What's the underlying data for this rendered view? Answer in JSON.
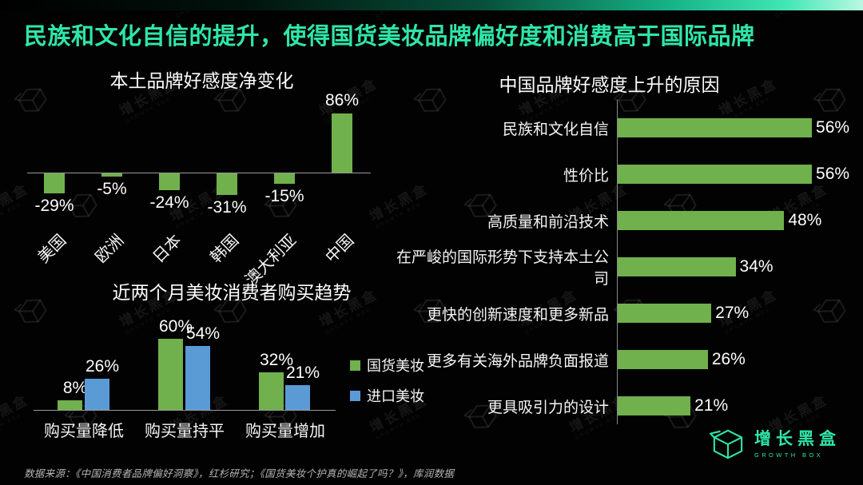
{
  "title": "民族和文化自信的提升，使得国货美妆品牌偏好度和消费高于国际品牌",
  "colors": {
    "accent": "#2ee6a8",
    "green": "#70b04d",
    "blue": "#5b9bd5",
    "axis": "#9a9a9a"
  },
  "watermark": {
    "name": "增长黑盒",
    "sub": "GROWTH BOX"
  },
  "logo": {
    "name": "增长黑盒",
    "sub": "GROWTH BOX"
  },
  "source": "数据来源：《中国消费者品牌偏好洞察》，红杉研究；《国货美妆个护真的崛起了吗？》，库润数据",
  "chart_data": [
    {
      "id": "net_change",
      "type": "bar",
      "title": "本土品牌好感度净变化",
      "categories": [
        "美国",
        "欧洲",
        "日本",
        "韩国",
        "澳大利亚",
        "中国"
      ],
      "values": [
        -29,
        -5,
        -24,
        -31,
        -15,
        86
      ],
      "unit": "%",
      "bar_color": "#70b04d",
      "ylim": [
        -40,
        90
      ],
      "grid": false,
      "value_labels": true
    },
    {
      "id": "purchase_trend",
      "type": "bar",
      "title": "近两个月美妆消费者购买趋势",
      "categories": [
        "购买量降低",
        "购买量持平",
        "购买量增加"
      ],
      "series": [
        {
          "name": "国货美妆",
          "color": "#70b04d",
          "values": [
            8,
            60,
            32
          ]
        },
        {
          "name": "进口美妆",
          "color": "#5b9bd5",
          "values": [
            26,
            54,
            21
          ]
        }
      ],
      "unit": "%",
      "ylim": [
        0,
        65
      ],
      "grid": false,
      "legend_position": "right",
      "value_labels": true
    },
    {
      "id": "reasons",
      "type": "bar",
      "orientation": "horizontal",
      "title": "中国品牌好感度上升的原因",
      "categories": [
        "民族和文化自信",
        "性价比",
        "高质量和前沿技术",
        "在严峻的国际形势下支持本土公司",
        "更快的创新速度和更多新品",
        "更多有关海外品牌负面报道",
        "更具吸引力的设计"
      ],
      "values": [
        56,
        56,
        48,
        34,
        27,
        26,
        21
      ],
      "unit": "%",
      "bar_color": "#70b04d",
      "xlim": [
        0,
        60
      ],
      "grid": false,
      "value_labels": true
    }
  ]
}
